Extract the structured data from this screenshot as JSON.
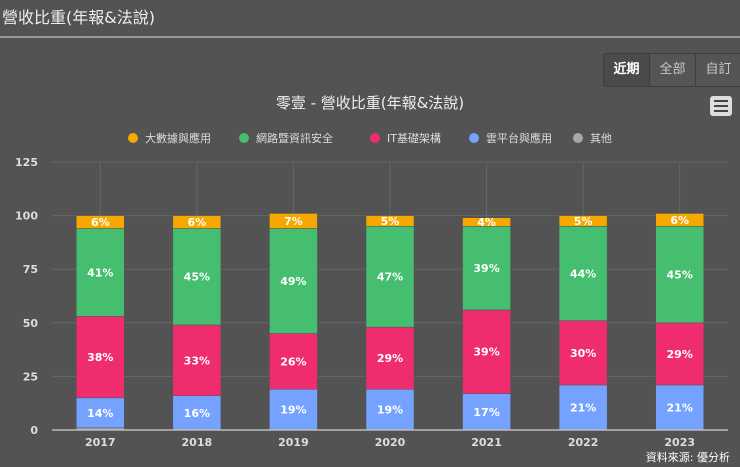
{
  "header": {
    "title": "營收比重(年報&法說)"
  },
  "range_buttons": [
    "近期",
    "全部",
    "自訂"
  ],
  "chart_data": {
    "type": "bar",
    "stacked": true,
    "title": "零壹 - 營收比重(年報&法說)",
    "categories": [
      "2017",
      "2018",
      "2019",
      "2020",
      "2021",
      "2022",
      "2023"
    ],
    "ylim": [
      0,
      125
    ],
    "yticks": [
      0,
      25,
      50,
      75,
      100,
      125
    ],
    "grid": true,
    "legend_position": "top",
    "series": [
      {
        "name": "大數據與應用",
        "color": "#f7a800",
        "values": [
          6,
          6,
          7,
          5,
          4,
          5,
          6
        ]
      },
      {
        "name": "網路暨資訊安全",
        "color": "#45bf6f",
        "values": [
          41,
          45,
          49,
          47,
          39,
          44,
          45
        ]
      },
      {
        "name": "IT基礎架構",
        "color": "#ef2d6e",
        "values": [
          38,
          33,
          26,
          29,
          39,
          30,
          29
        ]
      },
      {
        "name": "雲平台與應用",
        "color": "#76a2ff",
        "values": [
          14,
          16,
          19,
          19,
          17,
          21,
          21
        ]
      },
      {
        "name": "其他",
        "color": "#a8a8a8",
        "values": [
          1,
          0,
          0,
          0,
          0,
          0,
          0
        ]
      }
    ],
    "value_suffix": "%",
    "credit": "資料來源: 優分析"
  }
}
